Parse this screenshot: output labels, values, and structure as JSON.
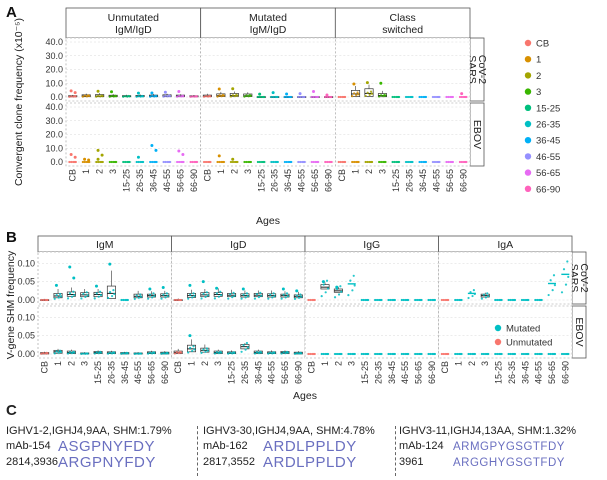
{
  "panel_labels": {
    "a": "A",
    "b": "B",
    "c": "C"
  },
  "chart_data": [
    {
      "type": "box",
      "panel": "A",
      "facet_cols": [
        "Unmutated IgM/IgD",
        "Mutated IgM/IgD",
        "Class switched"
      ],
      "facet_rows": [
        "SARS CoV-2",
        "EBOV"
      ],
      "categories": [
        "CB",
        "1",
        "2",
        "3",
        "15-25",
        "26-35",
        "36-45",
        "46-55",
        "56-65",
        "66-90"
      ],
      "xlabel": "Ages",
      "ylabel": "Convergent clone frequency (x10⁻⁵)",
      "yticks_top": [
        "40.0",
        "30.0",
        "20.0",
        "10.0",
        "0.0"
      ],
      "ylim": [
        0,
        40
      ],
      "legend": {
        "position": "right",
        "entries": [
          "CB",
          "1",
          "2",
          "3",
          "15-25",
          "26-35",
          "36-45",
          "46-55",
          "56-65",
          "66-90"
        ],
        "colors": [
          "#f8766d",
          "#d89000",
          "#a3a500",
          "#39b600",
          "#00bf7d",
          "#00bfc4",
          "#00b0f6",
          "#9590ff",
          "#e76bf3",
          "#ff62bc"
        ]
      },
      "series": [
        {
          "facet": "Unmutated IgM/IgD",
          "row": "SARS CoV-2",
          "medians": [
            0.4,
            0.8,
            0.7,
            0.6,
            0.5,
            0.5,
            0.6,
            0.7,
            0.6,
            0.4
          ],
          "q1": [
            0.1,
            0.2,
            0.2,
            0.2,
            0.2,
            0.2,
            0.2,
            0.2,
            0.2,
            0.1
          ],
          "q3": [
            1.0,
            1.6,
            1.8,
            1.3,
            1.0,
            1.2,
            1.4,
            1.6,
            1.4,
            0.9
          ],
          "maxima": [
            1.5,
            2.5,
            2.8,
            2.2,
            1.6,
            2.0,
            2.2,
            2.4,
            2.0,
            1.5
          ],
          "outliers": [
            [
              4.5,
              3.2
            ],
            [],
            [
              4.2
            ],
            [
              3.8
            ],
            [],
            [
              2.8
            ],
            [
              2.9
            ],
            [
              3.5
            ],
            [
              4.0
            ],
            []
          ]
        },
        {
          "facet": "Mutated IgM/IgD",
          "row": "SARS CoV-2",
          "medians": [
            0.5,
            1.0,
            1.1,
            0.9,
            0.0,
            0.0,
            0.0,
            0.0,
            0.0,
            0.0
          ],
          "q1": [
            0.2,
            0.3,
            0.4,
            0.3,
            0.0,
            0.0,
            0.0,
            0.0,
            0.0,
            0.0
          ],
          "q3": [
            1.4,
            2.3,
            2.6,
            2.2,
            0.3,
            0.3,
            0.3,
            0.3,
            0.3,
            0.3
          ],
          "maxima": [
            2.4,
            3.7,
            4.0,
            3.5,
            0.5,
            0.6,
            0.5,
            0.4,
            0.4,
            0.3
          ],
          "outliers": [
            [],
            [
              5.8
            ],
            [
              6.0
            ],
            [],
            [
              2.1
            ],
            [
              3.2
            ],
            [
              2.2
            ],
            [
              2.5
            ],
            [
              4.0
            ],
            [
              1.5
            ]
          ]
        },
        {
          "facet": "Class switched",
          "row": "SARS CoV-2",
          "medians": [
            0.0,
            2.2,
            2.6,
            1.1,
            0.0,
            0.0,
            0.0,
            0.0,
            0.0,
            0.0
          ],
          "q1": [
            0.0,
            0.3,
            0.4,
            0.2,
            0.0,
            0.0,
            0.0,
            0.0,
            0.0,
            0.0
          ],
          "q3": [
            0.0,
            4.8,
            6.0,
            2.5,
            0.0,
            0.0,
            0.0,
            0.0,
            0.0,
            0.0
          ],
          "maxima": [
            0.0,
            8.0,
            9.0,
            4.5,
            0.0,
            0.0,
            0.0,
            0.0,
            0.0,
            0.0
          ],
          "outliers": [
            [],
            [
              9.5
            ],
            [
              10.5
            ],
            [
              10.0
            ],
            [],
            [],
            [],
            [],
            [],
            [
              2.5
            ]
          ]
        },
        {
          "facet": "Unmutated IgM/IgD",
          "row": "EBOV",
          "medians": [
            0.0,
            0.0,
            0.0,
            0.0,
            0.0,
            0.0,
            0.0,
            0.0,
            0.0,
            0.0
          ],
          "outliers": [
            [
              5.5,
              3.5
            ],
            [
              2.0,
              1.5
            ],
            [
              8.5,
              5.0,
              2.0
            ],
            [],
            [],
            [
              3.5
            ],
            [
              12.0,
              8.5
            ],
            [],
            [
              8.0,
              5.5
            ],
            []
          ]
        },
        {
          "facet": "Mutated IgM/IgD",
          "row": "EBOV",
          "medians": [
            0.0,
            0.0,
            0.0,
            0.0,
            0.0,
            0.0,
            0.0,
            0.0,
            0.0,
            0.0
          ],
          "outliers": [
            [],
            [
              4.5
            ],
            [
              2.0
            ],
            [],
            [],
            [],
            [],
            [],
            [],
            []
          ]
        },
        {
          "facet": "Class switched",
          "row": "EBOV",
          "medians": [
            0.0,
            0.0,
            0.0,
            0.0,
            0.0,
            0.0,
            0.0,
            0.0,
            0.0,
            0.0
          ],
          "outliers": [
            [],
            [],
            [],
            [],
            [],
            [],
            [],
            [],
            [],
            []
          ]
        }
      ]
    },
    {
      "type": "box",
      "panel": "B",
      "facet_cols": [
        "IgM",
        "IgD",
        "IgG",
        "IgA"
      ],
      "facet_rows": [
        "SARS CoV-2",
        "EBOV"
      ],
      "categories": [
        "CB",
        "1",
        "2",
        "3",
        "15-25",
        "26-35",
        "36-45",
        "46-55",
        "56-65",
        "66-90"
      ],
      "xlabel": "Ages",
      "ylabel": "V-gene SHM frequency",
      "yticks": [
        "0.10",
        "0.05",
        "0.00"
      ],
      "ylim": [
        0,
        0.12
      ],
      "legend": {
        "position": "right",
        "entries": [
          "Mutated",
          "Unmutated"
        ],
        "colors": [
          "#00bfc4",
          "#f8766d"
        ]
      },
      "series": [
        {
          "facet": "IgM",
          "row": "SARS CoV-2",
          "medians": [
            0.0,
            0.011,
            0.015,
            0.014,
            0.015,
            0.018,
            0.0,
            0.01,
            0.012,
            0.012
          ],
          "q1": [
            0.0,
            0.006,
            0.01,
            0.009,
            0.009,
            0.004,
            0.0,
            0.006,
            0.008,
            0.008
          ],
          "q3": [
            0.001,
            0.018,
            0.022,
            0.02,
            0.021,
            0.038,
            0.0,
            0.016,
            0.016,
            0.017
          ],
          "maxima": [
            0.003,
            0.03,
            0.034,
            0.03,
            0.03,
            0.08,
            0.0,
            0.025,
            0.024,
            0.025
          ],
          "outliers": [
            [],
            [
              0.04
            ],
            [
              0.09,
              0.06
            ],
            [],
            [
              0.038
            ],
            [
              0.098
            ],
            [],
            [],
            [
              0.03
            ],
            [
              0.034
            ]
          ]
        },
        {
          "facet": "IgD",
          "row": "SARS CoV-2",
          "medians": [
            0.0,
            0.012,
            0.014,
            0.015,
            0.013,
            0.012,
            0.013,
            0.012,
            0.012,
            0.01
          ],
          "q1": [
            0.0,
            0.007,
            0.009,
            0.01,
            0.009,
            0.008,
            0.009,
            0.008,
            0.008,
            0.006
          ],
          "q3": [
            0.001,
            0.018,
            0.02,
            0.02,
            0.018,
            0.017,
            0.018,
            0.017,
            0.016,
            0.014
          ],
          "maxima": [
            0.004,
            0.028,
            0.03,
            0.032,
            0.028,
            0.026,
            0.026,
            0.026,
            0.024,
            0.022
          ],
          "outliers": [
            [],
            [
              0.04
            ],
            [
              0.05
            ],
            [
              0.032
            ],
            [],
            [
              0.03
            ],
            [],
            [],
            [
              0.03
            ],
            [
              0.025
            ]
          ]
        },
        {
          "facet": "IgG",
          "row": "SARS CoV-2",
          "medians": [
            0.0,
            0.035,
            0.025,
            0.044,
            0.0,
            0.0,
            0.0,
            0.0,
            0.0,
            0.0
          ],
          "q1": [
            0.0,
            0.03,
            0.021,
            0.044,
            0.0,
            0.0,
            0.0,
            0.0,
            0.0,
            0.0
          ],
          "q3": [
            0.0,
            0.042,
            0.03,
            0.044,
            0.0,
            0.0,
            0.0,
            0.0,
            0.0,
            0.0
          ],
          "maxima": [
            0.0,
            0.048,
            0.036,
            0.044,
            0.0,
            0.0,
            0.0,
            0.0,
            0.0,
            0.0
          ],
          "outliers": [
            [],
            [
              0.05
            ],
            [
              0.035
            ],
            [],
            [],
            [],
            [],
            [],
            [],
            []
          ]
        },
        {
          "facet": "IgA",
          "row": "SARS CoV-2",
          "medians": [
            0.0,
            0.0,
            0.018,
            0.012,
            0.0,
            0.0,
            0.0,
            0.0,
            0.045,
            0.07
          ],
          "q1": [
            0.0,
            0.0,
            0.018,
            0.008,
            0.0,
            0.0,
            0.0,
            0.0,
            0.045,
            0.07
          ],
          "q3": [
            0.0,
            0.0,
            0.018,
            0.016,
            0.0,
            0.0,
            0.0,
            0.0,
            0.045,
            0.07
          ],
          "maxima": [
            0.0,
            0.0,
            0.018,
            0.02,
            0.0,
            0.0,
            0.0,
            0.0,
            0.045,
            0.07
          ],
          "outliers": [
            [],
            [],
            [],
            [],
            [],
            [],
            [],
            [],
            [],
            []
          ]
        },
        {
          "facet": "IgM",
          "row": "EBOV",
          "medians": [
            0.002,
            0.006,
            0.004,
            0.001,
            0.004,
            0.003,
            0.002,
            0.001,
            0.003,
            0.002
          ],
          "q1": [
            0.0,
            0.002,
            0.001,
            0.0,
            0.001,
            0.001,
            0.0,
            0.0,
            0.001,
            0.0
          ],
          "q3": [
            0.004,
            0.01,
            0.008,
            0.003,
            0.007,
            0.006,
            0.004,
            0.003,
            0.006,
            0.005
          ],
          "maxima": [
            0.006,
            0.014,
            0.012,
            0.005,
            0.01,
            0.009,
            0.006,
            0.005,
            0.009,
            0.008
          ],
          "outliers": [
            [],
            [],
            [],
            [],
            [],
            [],
            [],
            [],
            [],
            []
          ]
        },
        {
          "facet": "IgD",
          "row": "EBOV",
          "medians": [
            0.004,
            0.014,
            0.01,
            0.004,
            0.003,
            0.02,
            0.004,
            0.003,
            0.004,
            0.002
          ],
          "q1": [
            0.001,
            0.006,
            0.005,
            0.001,
            0.001,
            0.014,
            0.001,
            0.001,
            0.001,
            0.0
          ],
          "q3": [
            0.008,
            0.024,
            0.016,
            0.008,
            0.006,
            0.026,
            0.008,
            0.006,
            0.007,
            0.005
          ],
          "maxima": [
            0.014,
            0.04,
            0.026,
            0.012,
            0.01,
            0.03,
            0.012,
            0.01,
            0.01,
            0.008
          ],
          "outliers": [
            [],
            [
              0.05
            ],
            [],
            [],
            [],
            [],
            [],
            [],
            [],
            []
          ]
        },
        {
          "facet": "IgG",
          "row": "EBOV",
          "medians": [
            0.0,
            0.0,
            0.0,
            0.0,
            0.0,
            0.0,
            0.0,
            0.0,
            0.0,
            0.0
          ],
          "outliers": [
            [],
            [],
            [],
            [],
            [],
            [],
            [],
            [],
            [],
            []
          ]
        },
        {
          "facet": "IgA",
          "row": "EBOV",
          "medians": [
            0.0,
            0.0,
            0.0,
            0.0,
            0.0,
            0.0,
            0.0,
            0.0,
            0.0,
            0.0
          ],
          "outliers": [
            [],
            [],
            [],
            [],
            [],
            [],
            [],
            [],
            [],
            []
          ]
        }
      ]
    }
  ],
  "panel_c": {
    "columns": [
      {
        "header": "IGHV1-2,IGHJ4,9AA, SHM:1.79%",
        "rows": [
          {
            "label": "mAb-154",
            "seq": "ASGPNYFDY",
            "small": false
          },
          {
            "label": "2814,3936",
            "seq": "ARGPNYFDY",
            "small": false
          }
        ]
      },
      {
        "header": "IGHV3-30,IGHJ4,9AA, SHM:4.78%",
        "rows": [
          {
            "label": "mAb-162",
            "seq": "ARDLPPLDY",
            "small": false
          },
          {
            "label": "2817,3552",
            "seq": "ARDLPPLDY",
            "small": false
          }
        ]
      },
      {
        "header": "IGHV3-11,IGHJ4,13AA, SHM:1.32%",
        "rows": [
          {
            "label": "mAb-124",
            "seq": "ARMGPYGSGTFDY",
            "small": true
          },
          {
            "label": "3961",
            "seq": "ARGGHYGSGTFDY",
            "small": true
          }
        ]
      }
    ]
  }
}
